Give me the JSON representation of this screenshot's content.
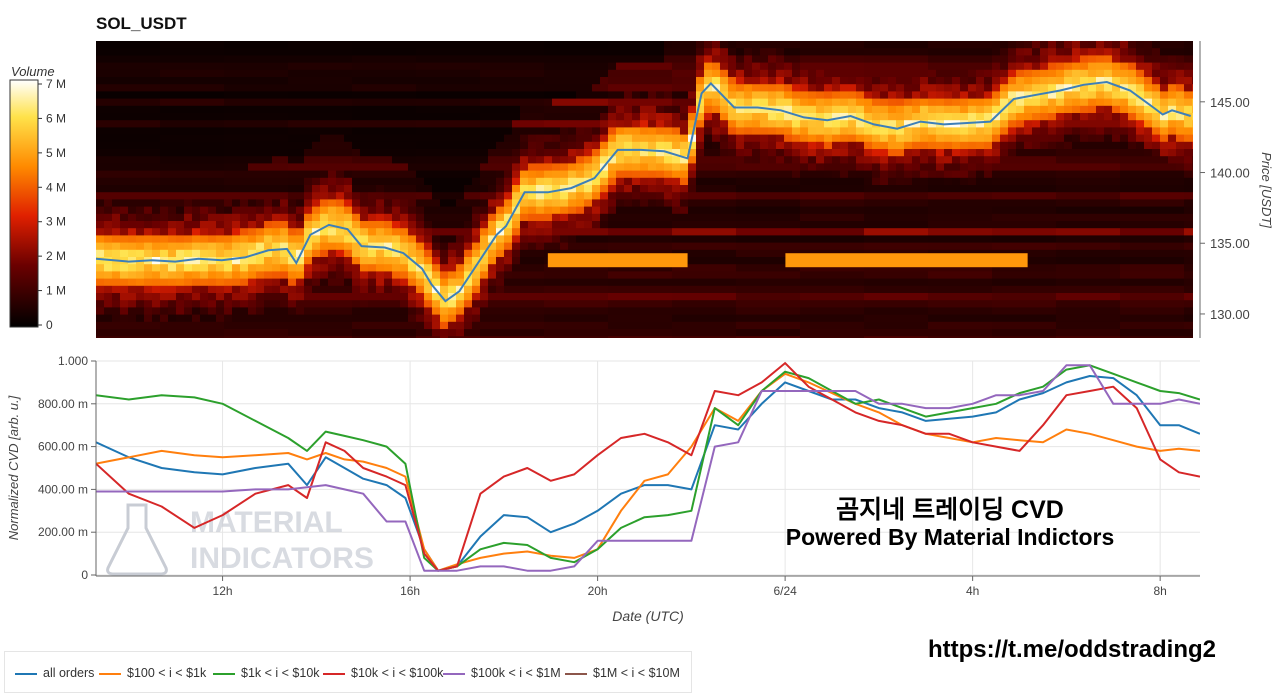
{
  "title": "SOL_USDT",
  "overlay": {
    "line1": "곰지네 트레이딩 CVD",
    "line2": "Powered By Material Indictors"
  },
  "watermark": {
    "line1": "MATERIAL",
    "line2": "INDICATORS"
  },
  "url": "https://t.me/oddstrading2",
  "legend": [
    {
      "label": "all orders",
      "color": "#1f77b4"
    },
    {
      "label": "$100 < i < $1k",
      "color": "#ff7f0e"
    },
    {
      "label": "$1k < i < $10k",
      "color": "#2ca02c"
    },
    {
      "label": "$10k < i < $100k",
      "color": "#d62728"
    },
    {
      "label": "$100k < i < $1M",
      "color": "#9467bd"
    },
    {
      "label": "$1M < i < $10M",
      "color": "#8c564b"
    }
  ],
  "chart_data": [
    {
      "type": "heatmap",
      "title": "SOL_USDT",
      "ylabel": "Price [USDT]",
      "ylim": [
        128.3,
        149.3
      ],
      "yticks": [
        "130.00",
        "135.00",
        "140.00",
        "145.00"
      ],
      "colorbar": {
        "title": "Volume",
        "range": [
          0,
          7
        ],
        "ticks": [
          "0",
          "1 M",
          "2 M",
          "3 M",
          "4 M",
          "5 M",
          "6 M",
          "7 M"
        ]
      },
      "price_series": {
        "name": "price",
        "color": "#3d7fb8",
        "x_hours": [
          9.3,
          10.0,
          10.5,
          11.0,
          11.5,
          12.0,
          12.5,
          13.0,
          13.4,
          13.6,
          13.9,
          14.3,
          14.7,
          15.0,
          15.5,
          15.9,
          16.3,
          16.5,
          16.8,
          17.1,
          17.5,
          17.9,
          18.1,
          18.5,
          19.0,
          19.5,
          20.0,
          20.5,
          21.0,
          21.5,
          22.0,
          22.3,
          22.5,
          23.0,
          23.5,
          24.0,
          24.5,
          25.0,
          25.5,
          26.0,
          26.5,
          27.0,
          27.5,
          28.0,
          28.5,
          29.0,
          29.5,
          30.0,
          30.5,
          31.0,
          31.5,
          32.0,
          32.2,
          32.4,
          32.8
        ],
        "y": [
          133.9,
          133.7,
          133.8,
          133.7,
          133.9,
          133.8,
          134.0,
          134.5,
          134.6,
          133.6,
          135.6,
          136.3,
          136.0,
          134.8,
          134.7,
          134.3,
          133.2,
          132.1,
          130.9,
          131.6,
          133.6,
          135.6,
          136.2,
          138.6,
          138.6,
          138.9,
          139.6,
          141.6,
          141.6,
          141.5,
          141.0,
          145.6,
          146.3,
          144.6,
          144.6,
          144.4,
          143.9,
          143.7,
          144.0,
          143.4,
          143.1,
          143.6,
          143.4,
          143.5,
          143.6,
          145.2,
          145.5,
          145.8,
          146.2,
          146.4,
          145.8,
          144.6,
          144.1,
          144.4,
          144.0
        ]
      },
      "bands": [
        {
          "price": 133.8,
          "x_start_hours": 19.0,
          "x_end_hours": 22.0,
          "volume_m": 4.2
        },
        {
          "price": 133.8,
          "x_start_hours": 24.1,
          "x_end_hours": 29.3,
          "volume_m": 4.2
        }
      ]
    },
    {
      "type": "line",
      "xlabel": "Date (UTC)",
      "ylabel": "Normalized CVD [arb. u.]",
      "ylim": [
        0,
        1
      ],
      "xlim_hours": [
        9.3,
        32.85
      ],
      "xticks": [
        {
          "label": "12h",
          "hours": 12
        },
        {
          "label": "16h",
          "hours": 16
        },
        {
          "label": "20h",
          "hours": 20
        },
        {
          "label": "6/24",
          "hours": 24
        },
        {
          "label": "4h",
          "hours": 28
        },
        {
          "label": "8h",
          "hours": 32
        }
      ],
      "yticks": [
        "0",
        "200.00 m",
        "400.00 m",
        "600.00 m",
        "800.00 m",
        "1.000"
      ],
      "x_hours": [
        9.3,
        10.0,
        10.7,
        11.4,
        12.0,
        12.7,
        13.4,
        13.8,
        14.2,
        14.6,
        15.0,
        15.5,
        15.9,
        16.3,
        16.6,
        17.0,
        17.5,
        18.0,
        18.5,
        19.0,
        19.5,
        20.0,
        20.5,
        21.0,
        21.5,
        22.0,
        22.5,
        23.0,
        23.5,
        24.0,
        24.5,
        25.0,
        25.5,
        26.0,
        26.5,
        27.0,
        27.5,
        28.0,
        28.5,
        29.0,
        29.5,
        30.0,
        30.5,
        31.0,
        31.5,
        32.0,
        32.4,
        32.85
      ],
      "series": [
        {
          "name": "all orders",
          "color": "#1f77b4",
          "values": [
            0.62,
            0.55,
            0.5,
            0.48,
            0.47,
            0.5,
            0.52,
            0.42,
            0.55,
            0.5,
            0.45,
            0.42,
            0.36,
            0.12,
            0.02,
            0.04,
            0.18,
            0.28,
            0.27,
            0.2,
            0.24,
            0.3,
            0.38,
            0.42,
            0.42,
            0.4,
            0.7,
            0.68,
            0.8,
            0.9,
            0.86,
            0.82,
            0.82,
            0.78,
            0.76,
            0.72,
            0.73,
            0.74,
            0.76,
            0.82,
            0.85,
            0.9,
            0.93,
            0.92,
            0.84,
            0.7,
            0.7,
            0.66
          ]
        },
        {
          "name": "$100 < i < $1k",
          "color": "#ff7f0e",
          "values": [
            0.52,
            0.55,
            0.58,
            0.56,
            0.55,
            0.56,
            0.57,
            0.54,
            0.57,
            0.54,
            0.53,
            0.5,
            0.46,
            0.12,
            0.02,
            0.05,
            0.08,
            0.1,
            0.11,
            0.09,
            0.08,
            0.12,
            0.3,
            0.44,
            0.47,
            0.6,
            0.78,
            0.72,
            0.86,
            0.94,
            0.9,
            0.85,
            0.8,
            0.76,
            0.7,
            0.66,
            0.64,
            0.62,
            0.64,
            0.63,
            0.62,
            0.68,
            0.66,
            0.63,
            0.6,
            0.58,
            0.59,
            0.58
          ]
        },
        {
          "name": "$1k < i < $10k",
          "color": "#2ca02c",
          "values": [
            0.84,
            0.82,
            0.84,
            0.83,
            0.8,
            0.72,
            0.64,
            0.58,
            0.67,
            0.65,
            0.63,
            0.6,
            0.52,
            0.08,
            0.02,
            0.04,
            0.12,
            0.15,
            0.14,
            0.08,
            0.06,
            0.12,
            0.22,
            0.27,
            0.28,
            0.3,
            0.78,
            0.7,
            0.86,
            0.95,
            0.92,
            0.86,
            0.8,
            0.82,
            0.78,
            0.74,
            0.76,
            0.78,
            0.8,
            0.85,
            0.88,
            0.96,
            0.98,
            0.94,
            0.9,
            0.86,
            0.85,
            0.82
          ]
        },
        {
          "name": "$10k < i < $100k",
          "color": "#d62728",
          "values": [
            0.52,
            0.38,
            0.32,
            0.22,
            0.28,
            0.38,
            0.42,
            0.36,
            0.62,
            0.58,
            0.5,
            0.46,
            0.42,
            0.1,
            0.02,
            0.04,
            0.38,
            0.46,
            0.5,
            0.44,
            0.47,
            0.56,
            0.64,
            0.66,
            0.62,
            0.56,
            0.86,
            0.84,
            0.9,
            0.99,
            0.88,
            0.82,
            0.76,
            0.72,
            0.7,
            0.66,
            0.66,
            0.62,
            0.6,
            0.58,
            0.7,
            0.84,
            0.86,
            0.88,
            0.78,
            0.54,
            0.48,
            0.46
          ]
        },
        {
          "name": "$100k < i < $1M",
          "color": "#9467bd",
          "values": [
            0.39,
            0.39,
            0.39,
            0.39,
            0.39,
            0.4,
            0.4,
            0.41,
            0.42,
            0.4,
            0.38,
            0.25,
            0.25,
            0.02,
            0.02,
            0.02,
            0.04,
            0.04,
            0.02,
            0.02,
            0.04,
            0.16,
            0.16,
            0.16,
            0.16,
            0.16,
            0.6,
            0.62,
            0.86,
            0.86,
            0.86,
            0.86,
            0.86,
            0.8,
            0.8,
            0.78,
            0.78,
            0.8,
            0.84,
            0.84,
            0.86,
            0.98,
            0.98,
            0.8,
            0.8,
            0.8,
            0.82,
            0.8
          ]
        },
        {
          "name": "$1M < i < $10M",
          "color": "#8c564b",
          "values": []
        }
      ]
    }
  ]
}
